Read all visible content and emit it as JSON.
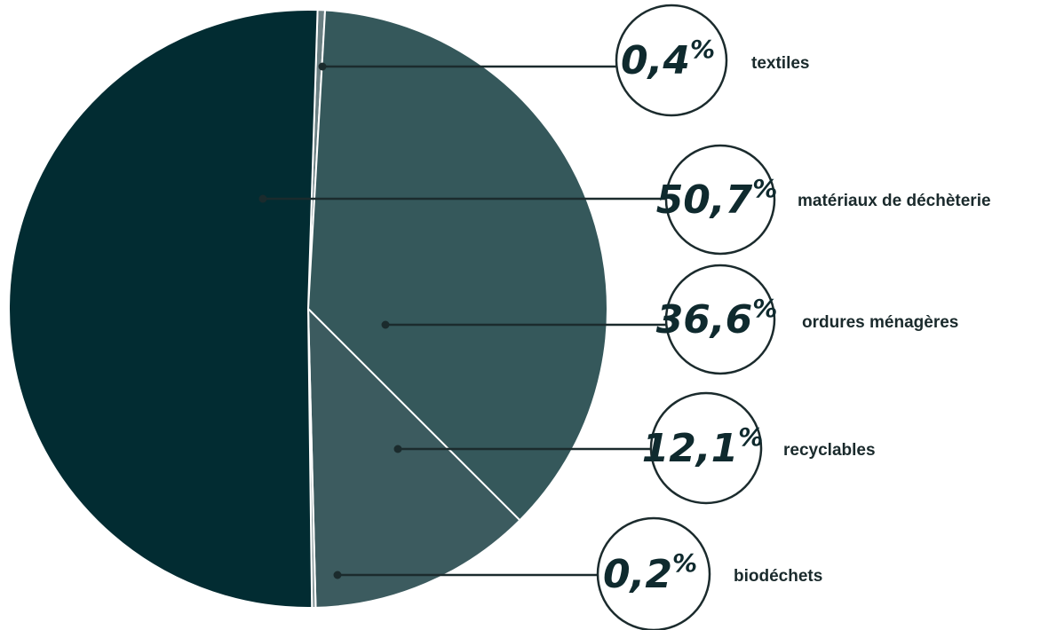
{
  "chart_data": {
    "type": "pie",
    "legend": "right",
    "slices": [
      {
        "label": "textiles",
        "value": 0.4,
        "display": "0,4",
        "unit": "%",
        "color": "#6a7f82"
      },
      {
        "label": "ordures ménagères",
        "value": 36.6,
        "display": "36,6",
        "unit": "%",
        "color": "#35585b"
      },
      {
        "label": "recyclables",
        "value": 12.1,
        "display": "12,1",
        "unit": "%",
        "color": "#3c5b5f"
      },
      {
        "label": "biodéchets",
        "value": 0.2,
        "display": "0,2",
        "unit": "%",
        "color": "#8a9a9c"
      },
      {
        "label": "matériaux de déchèterie",
        "value": 50.7,
        "display": "50,7",
        "unit": "%",
        "color": "#022c32"
      }
    ]
  }
}
